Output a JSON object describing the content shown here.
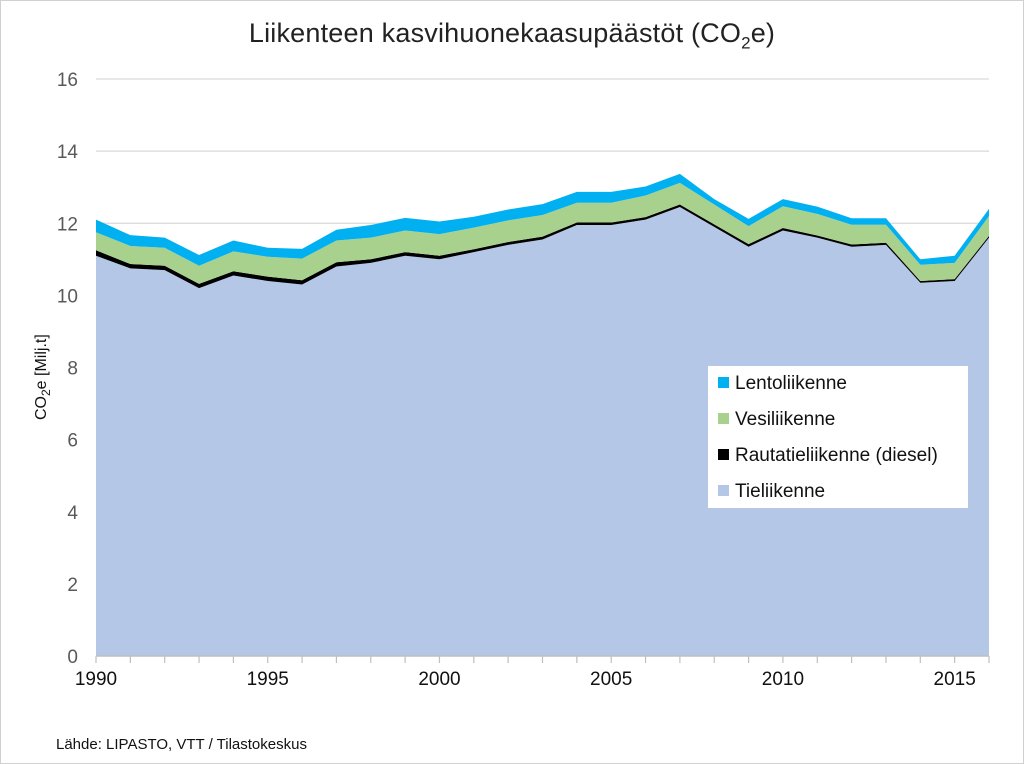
{
  "title": {
    "main": "Liikenteen kasvihuonekaasupäästöt (CO",
    "sub": "2",
    "end": "e)"
  },
  "source": "Lähde: LIPASTO, VTT / Tilastokeskus",
  "colors": {
    "Tieliikenne": "#b4c7e7",
    "Rautatieliikenne (diesel)": "#000000",
    "Vesiliikenne": "#a9d18e",
    "Lentoliikenne": "#00b0f0",
    "grid": "#d9d9d9",
    "axis": "#bfbfbf"
  },
  "chart_data": {
    "type": "area",
    "stacked": true,
    "title": "Liikenteen kasvihuonekaasupäästöt (CO2e)",
    "ylabel": "CO2e [Milj.t]",
    "ylabel_parts": {
      "a": "CO",
      "sub": "2",
      "b": "e [Milj.t]"
    },
    "ylim": [
      0,
      16
    ],
    "yticks": [
      0,
      2,
      4,
      6,
      8,
      10,
      12,
      14,
      16
    ],
    "xlim": [
      1990,
      2016
    ],
    "xticks": [
      1990,
      1995,
      2000,
      2005,
      2010,
      2015
    ],
    "grid": true,
    "legend_position": "right-middle",
    "x": [
      1990,
      1991,
      1992,
      1993,
      1994,
      1995,
      1996,
      1997,
      1998,
      1999,
      2000,
      2001,
      2002,
      2003,
      2004,
      2005,
      2006,
      2007,
      2008,
      2009,
      2010,
      2011,
      2012,
      2013,
      2014,
      2015,
      2016
    ],
    "series": [
      {
        "name": "Tieliikenne",
        "values": [
          11.1,
          10.75,
          10.7,
          10.2,
          10.55,
          10.4,
          10.3,
          10.8,
          10.9,
          11.1,
          11.0,
          11.2,
          11.4,
          11.55,
          11.95,
          11.95,
          12.1,
          12.45,
          11.9,
          11.35,
          11.8,
          11.6,
          11.35,
          11.4,
          10.35,
          10.4,
          11.6
        ]
      },
      {
        "name": "Rautatieliikenne (diesel)",
        "values": [
          0.15,
          0.12,
          0.12,
          0.12,
          0.12,
          0.12,
          0.12,
          0.12,
          0.1,
          0.1,
          0.1,
          0.08,
          0.08,
          0.08,
          0.07,
          0.07,
          0.07,
          0.07,
          0.07,
          0.07,
          0.07,
          0.06,
          0.06,
          0.06,
          0.05,
          0.05,
          0.05
        ]
      },
      {
        "name": "Vesiliikenne",
        "values": [
          0.5,
          0.5,
          0.5,
          0.5,
          0.55,
          0.55,
          0.6,
          0.6,
          0.6,
          0.6,
          0.6,
          0.6,
          0.6,
          0.6,
          0.55,
          0.55,
          0.6,
          0.6,
          0.55,
          0.5,
          0.6,
          0.6,
          0.55,
          0.5,
          0.45,
          0.45,
          0.55
        ]
      },
      {
        "name": "Lentoliikenne",
        "values": [
          0.35,
          0.3,
          0.28,
          0.3,
          0.3,
          0.25,
          0.27,
          0.3,
          0.35,
          0.35,
          0.35,
          0.3,
          0.3,
          0.3,
          0.3,
          0.3,
          0.25,
          0.25,
          0.15,
          0.2,
          0.2,
          0.2,
          0.18,
          0.18,
          0.15,
          0.2,
          0.2
        ]
      }
    ]
  }
}
